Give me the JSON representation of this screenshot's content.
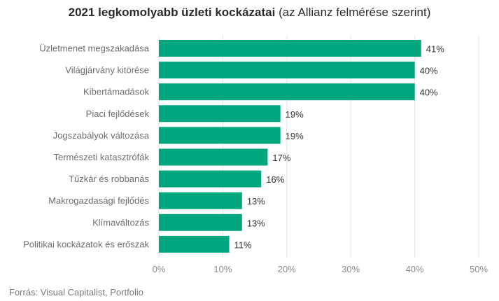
{
  "title": {
    "bold": "2021 legkomolyabb üzleti kockázatai",
    "normal": " (az Allianz felmérése szerint)"
  },
  "source": "Forrás: Visual Capitalist, Portfolio",
  "chart_data": {
    "type": "bar",
    "orientation": "horizontal",
    "categories": [
      "Üzletmenet megszakadása",
      "Világjárvány kitörése",
      "Kibertámadások",
      "Piaci fejlődések",
      "Jogszabályok változása",
      "Természeti katasztrófák",
      "Tűzkár és robbanás",
      "Makrogazdasági fejlődés",
      "Klímaváltozás",
      "Politikai kockázatok és erőszak"
    ],
    "values": [
      41,
      40,
      40,
      19,
      19,
      17,
      16,
      13,
      13,
      11
    ],
    "value_labels": [
      "41%",
      "40%",
      "40%",
      "19%",
      "19%",
      "17%",
      "16%",
      "13%",
      "13%",
      "11%"
    ],
    "xlim": [
      0,
      50
    ],
    "xticks": [
      0,
      10,
      20,
      30,
      40,
      50
    ],
    "xtick_labels": [
      "0%",
      "10%",
      "20%",
      "30%",
      "40%",
      "50%"
    ],
    "grid": "vertical",
    "bar_color": "#00a67e"
  }
}
